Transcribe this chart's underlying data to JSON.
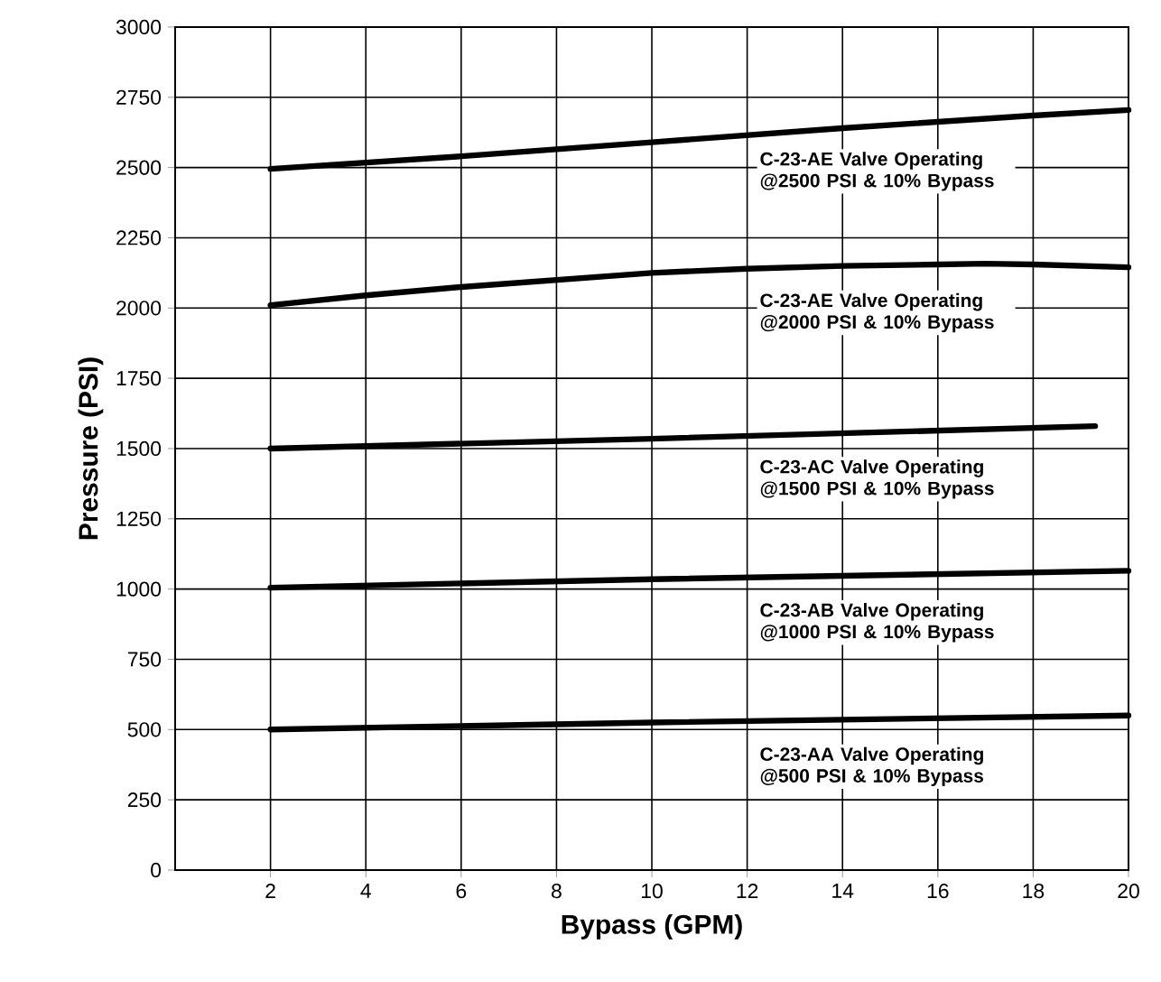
{
  "chart_data": {
    "type": "line",
    "xlabel": "Bypass (GPM)",
    "ylabel": "Pressure (PSI)",
    "xlim": [
      0,
      20
    ],
    "xticks": [
      2,
      4,
      6,
      8,
      10,
      12,
      14,
      16,
      18,
      20
    ],
    "ylim": [
      0,
      3000
    ],
    "yticks": [
      0,
      250,
      500,
      750,
      1000,
      1250,
      1500,
      1750,
      2000,
      2250,
      2500,
      2750,
      3000
    ],
    "grid": true,
    "legend": false,
    "marker": "none",
    "line_style": "solid",
    "series": [
      {
        "name": "C-23-AE Valve Operating @2500 PSI & 10% Bypass",
        "color": "#000000",
        "x": [
          2,
          6,
          10,
          14,
          18,
          20
        ],
        "values": [
          2495,
          2540,
          2590,
          2640,
          2685,
          2705
        ]
      },
      {
        "name": "C-23-AE Valve Operating @2000 PSI & 10% Bypass",
        "color": "#000000",
        "x": [
          2,
          4,
          6,
          8,
          10,
          12,
          14,
          16,
          17,
          18,
          20
        ],
        "values": [
          2010,
          2045,
          2075,
          2100,
          2125,
          2140,
          2150,
          2155,
          2158,
          2155,
          2145
        ]
      },
      {
        "name": "C-23-AC Valve Operating @1500 PSI & 10% Bypass",
        "color": "#000000",
        "x": [
          2,
          10,
          19.3
        ],
        "values": [
          1500,
          1535,
          1580
        ]
      },
      {
        "name": "C-23-AB Valve Operating @1000 PSI & 10% Bypass",
        "color": "#000000",
        "x": [
          2,
          10,
          20
        ],
        "values": [
          1005,
          1035,
          1065
        ]
      },
      {
        "name": "C-23-AA Valve Operating @500 PSI & 10% Bypass",
        "color": "#000000",
        "x": [
          2,
          10,
          20
        ],
        "values": [
          500,
          525,
          550
        ]
      }
    ]
  }
}
